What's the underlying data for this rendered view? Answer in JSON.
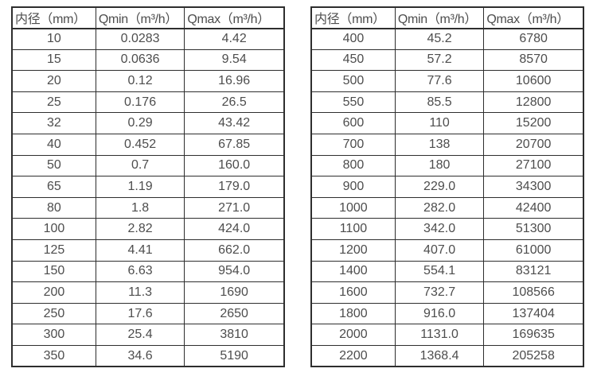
{
  "colors": {
    "border": "#2e2e2e",
    "text": "#4d4d4d",
    "background": "#ffffff"
  },
  "chart_data": [
    {
      "type": "table",
      "title": "",
      "headers": [
        "内径（mm）",
        "Qmin（m³/h）",
        "Qmax（m³/h）"
      ],
      "rows": [
        [
          "10",
          "0.0283",
          "4.42"
        ],
        [
          "15",
          "0.0636",
          "9.54"
        ],
        [
          "20",
          "0.12",
          "16.96"
        ],
        [
          "25",
          "0.176",
          "26.5"
        ],
        [
          "32",
          "0.29",
          "43.42"
        ],
        [
          "40",
          "0.452",
          "67.85"
        ],
        [
          "50",
          "0.7",
          "160.0"
        ],
        [
          "65",
          "1.19",
          "179.0"
        ],
        [
          "80",
          "1.8",
          "271.0"
        ],
        [
          "100",
          "2.82",
          "424.0"
        ],
        [
          "125",
          "4.41",
          "662.0"
        ],
        [
          "150",
          "6.63",
          "954.0"
        ],
        [
          "200",
          "11.3",
          "1690"
        ],
        [
          "250",
          "17.6",
          "2650"
        ],
        [
          "300",
          "25.4",
          "3810"
        ],
        [
          "350",
          "34.6",
          "5190"
        ]
      ]
    },
    {
      "type": "table",
      "title": "",
      "headers": [
        "内径（mm）",
        "Qmin（m³/h）",
        "Qmax（m³/h）"
      ],
      "rows": [
        [
          "400",
          "45.2",
          "6780"
        ],
        [
          "450",
          "57.2",
          "8570"
        ],
        [
          "500",
          "77.6",
          "10600"
        ],
        [
          "550",
          "85.5",
          "12800"
        ],
        [
          "600",
          "110",
          "15200"
        ],
        [
          "700",
          "138",
          "20700"
        ],
        [
          "800",
          "180",
          "27100"
        ],
        [
          "900",
          "229.0",
          "34300"
        ],
        [
          "1000",
          "282.0",
          "42400"
        ],
        [
          "1100",
          "342.0",
          "51300"
        ],
        [
          "1200",
          "407.0",
          "61000"
        ],
        [
          "1400",
          "554.1",
          "83121"
        ],
        [
          "1600",
          "732.7",
          "108566"
        ],
        [
          "1800",
          "916.0",
          "137404"
        ],
        [
          "2000",
          "1131.0",
          "169635"
        ],
        [
          "2200",
          "1368.4",
          "205258"
        ]
      ]
    }
  ]
}
